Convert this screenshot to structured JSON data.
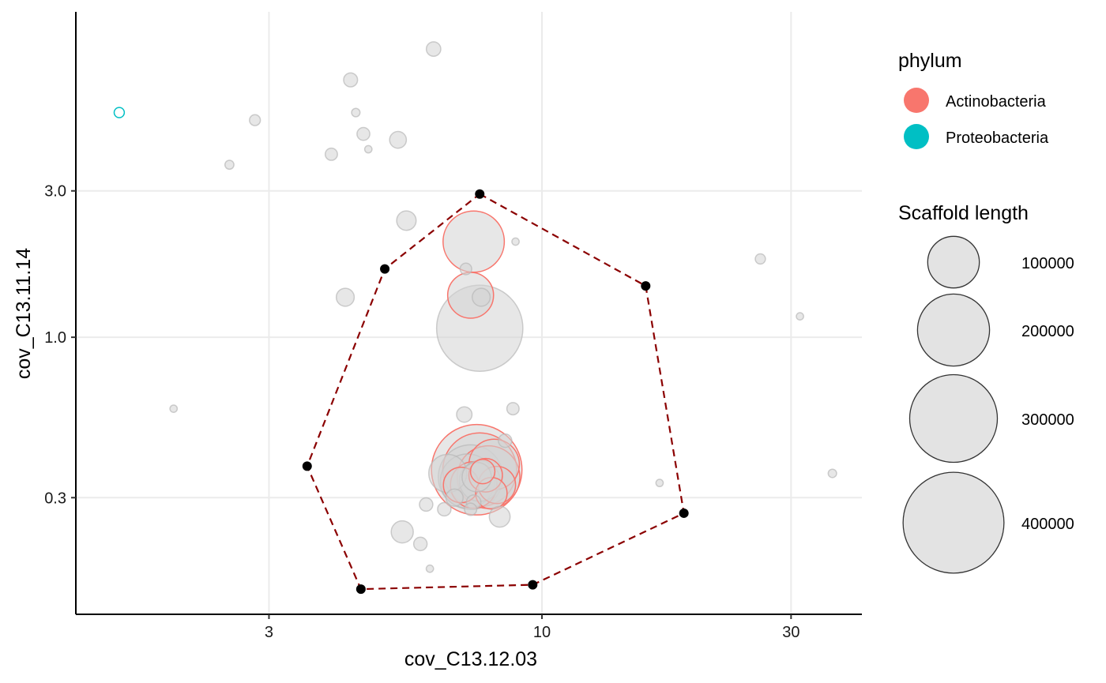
{
  "chart_data": {
    "type": "scatter",
    "xlabel": "cov_C13.12.03",
    "ylabel": "cov_C13.11.14",
    "x_scale": "log10",
    "y_scale": "log10",
    "xlim": [
      1.28,
      41
    ],
    "ylim": [
      0.125,
      11.5
    ],
    "x_ticks": [
      3,
      10,
      30
    ],
    "x_tick_labels": [
      "3",
      "10",
      "30"
    ],
    "y_ticks": [
      0.3,
      1.0,
      3.0
    ],
    "y_tick_labels": [
      "0.3",
      "1.0",
      "3.0"
    ],
    "grid": true,
    "colors": {
      "Actinobacteria": "#F8766D",
      "Proteobacteria": "#00BFC4",
      "unclassified": "#d3d3d3",
      "hull": "#8b0000",
      "vertex": "#000000"
    },
    "legend": {
      "placement": "right",
      "color_title": "phylum",
      "color_entries": [
        {
          "label": "Actinobacteria",
          "color": "#F8766D"
        },
        {
          "label": "Proteobacteria",
          "color": "#00BFC4"
        }
      ],
      "size_title": "Scaffold length",
      "size_entries": [
        {
          "label": "100000",
          "value": 100000
        },
        {
          "label": "200000",
          "value": 200000
        },
        {
          "label": "300000",
          "value": 300000
        },
        {
          "label": "400000",
          "value": 400000
        }
      ]
    },
    "points": [
      {
        "x": 6.2,
        "y": 8.7,
        "len": 6000,
        "phylum": null
      },
      {
        "x": 4.3,
        "y": 6.9,
        "len": 5500,
        "phylum": null
      },
      {
        "x": 1.55,
        "y": 5.4,
        "len": 2500,
        "phylum": "Proteobacteria"
      },
      {
        "x": 4.4,
        "y": 5.4,
        "len": 1500,
        "phylum": null
      },
      {
        "x": 2.82,
        "y": 5.1,
        "len": 3000,
        "phylum": null
      },
      {
        "x": 4.55,
        "y": 4.6,
        "len": 4500,
        "phylum": null
      },
      {
        "x": 5.3,
        "y": 4.4,
        "len": 8500,
        "phylum": null
      },
      {
        "x": 4.65,
        "y": 4.1,
        "len": 1000,
        "phylum": null
      },
      {
        "x": 3.95,
        "y": 3.95,
        "len": 4000,
        "phylum": null
      },
      {
        "x": 2.52,
        "y": 3.65,
        "len": 1800,
        "phylum": null
      },
      {
        "x": 5.5,
        "y": 2.4,
        "len": 12000,
        "phylum": null
      },
      {
        "x": 7.4,
        "y": 2.05,
        "len": 143000,
        "phylum": "Actinobacteria"
      },
      {
        "x": 8.9,
        "y": 2.05,
        "len": 1000,
        "phylum": null
      },
      {
        "x": 7.15,
        "y": 1.67,
        "len": 3500,
        "phylum": null
      },
      {
        "x": 7.3,
        "y": 1.37,
        "len": 78000,
        "phylum": "Actinobacteria"
      },
      {
        "x": 7.65,
        "y": 1.35,
        "len": 10000,
        "phylum": null
      },
      {
        "x": 4.2,
        "y": 1.35,
        "len": 10000,
        "phylum": null
      },
      {
        "x": 7.6,
        "y": 1.07,
        "len": 290000,
        "phylum": null
      },
      {
        "x": 26.2,
        "y": 1.8,
        "len": 2500,
        "phylum": null
      },
      {
        "x": 31.2,
        "y": 1.17,
        "len": 1000,
        "phylum": null
      },
      {
        "x": 1.97,
        "y": 0.585,
        "len": 1000,
        "phylum": null
      },
      {
        "x": 7.1,
        "y": 0.56,
        "len": 7000,
        "phylum": null
      },
      {
        "x": 8.8,
        "y": 0.585,
        "len": 4000,
        "phylum": null
      },
      {
        "x": 8.5,
        "y": 0.46,
        "len": 5000,
        "phylum": null
      },
      {
        "x": 6.6,
        "y": 0.36,
        "len": 52000,
        "phylum": null
      },
      {
        "x": 7.5,
        "y": 0.37,
        "len": 320000,
        "phylum": "Actinobacteria"
      },
      {
        "x": 7.3,
        "y": 0.35,
        "len": 160000,
        "phylum": null
      },
      {
        "x": 7.6,
        "y": 0.37,
        "len": 210000,
        "phylum": "Actinobacteria"
      },
      {
        "x": 7.2,
        "y": 0.34,
        "len": 110000,
        "phylum": null
      },
      {
        "x": 7.9,
        "y": 0.35,
        "len": 150000,
        "phylum": "Actinobacteria"
      },
      {
        "x": 8.1,
        "y": 0.385,
        "len": 95000,
        "phylum": "Actinobacteria"
      },
      {
        "x": 7.4,
        "y": 0.33,
        "len": 80000,
        "phylum": "Actinobacteria"
      },
      {
        "x": 7.6,
        "y": 0.34,
        "len": 60000,
        "phylum": null
      },
      {
        "x": 8.2,
        "y": 0.33,
        "len": 50000,
        "phylum": "Actinobacteria"
      },
      {
        "x": 7.8,
        "y": 0.355,
        "len": 40000,
        "phylum": "Actinobacteria"
      },
      {
        "x": 7.0,
        "y": 0.33,
        "len": 45000,
        "phylum": "Actinobacteria"
      },
      {
        "x": 8.0,
        "y": 0.31,
        "len": 35000,
        "phylum": "Actinobacteria"
      },
      {
        "x": 7.5,
        "y": 0.35,
        "len": 30000,
        "phylum": null
      },
      {
        "x": 7.7,
        "y": 0.365,
        "len": 20000,
        "phylum": "Actinobacteria"
      },
      {
        "x": 6.8,
        "y": 0.3,
        "len": 9000,
        "phylum": null
      },
      {
        "x": 7.4,
        "y": 0.29,
        "len": 6000,
        "phylum": null
      },
      {
        "x": 6.0,
        "y": 0.285,
        "len": 5000,
        "phylum": null
      },
      {
        "x": 6.5,
        "y": 0.275,
        "len": 5000,
        "phylum": null
      },
      {
        "x": 7.3,
        "y": 0.275,
        "len": 4000,
        "phylum": null
      },
      {
        "x": 8.3,
        "y": 0.26,
        "len": 14000,
        "phylum": null
      },
      {
        "x": 5.4,
        "y": 0.232,
        "len": 16000,
        "phylum": null
      },
      {
        "x": 5.85,
        "y": 0.212,
        "len": 5000,
        "phylum": null
      },
      {
        "x": 6.1,
        "y": 0.176,
        "len": 1000,
        "phylum": null
      },
      {
        "x": 16.8,
        "y": 0.335,
        "len": 1000,
        "phylum": null
      },
      {
        "x": 36.0,
        "y": 0.36,
        "len": 1500,
        "phylum": null
      }
    ],
    "hull": [
      {
        "x": 7.6,
        "y": 2.93
      },
      {
        "x": 15.8,
        "y": 1.47
      },
      {
        "x": 18.7,
        "y": 0.267
      },
      {
        "x": 9.6,
        "y": 0.156
      },
      {
        "x": 4.5,
        "y": 0.151
      },
      {
        "x": 3.55,
        "y": 0.38
      },
      {
        "x": 5.0,
        "y": 1.67
      }
    ]
  }
}
